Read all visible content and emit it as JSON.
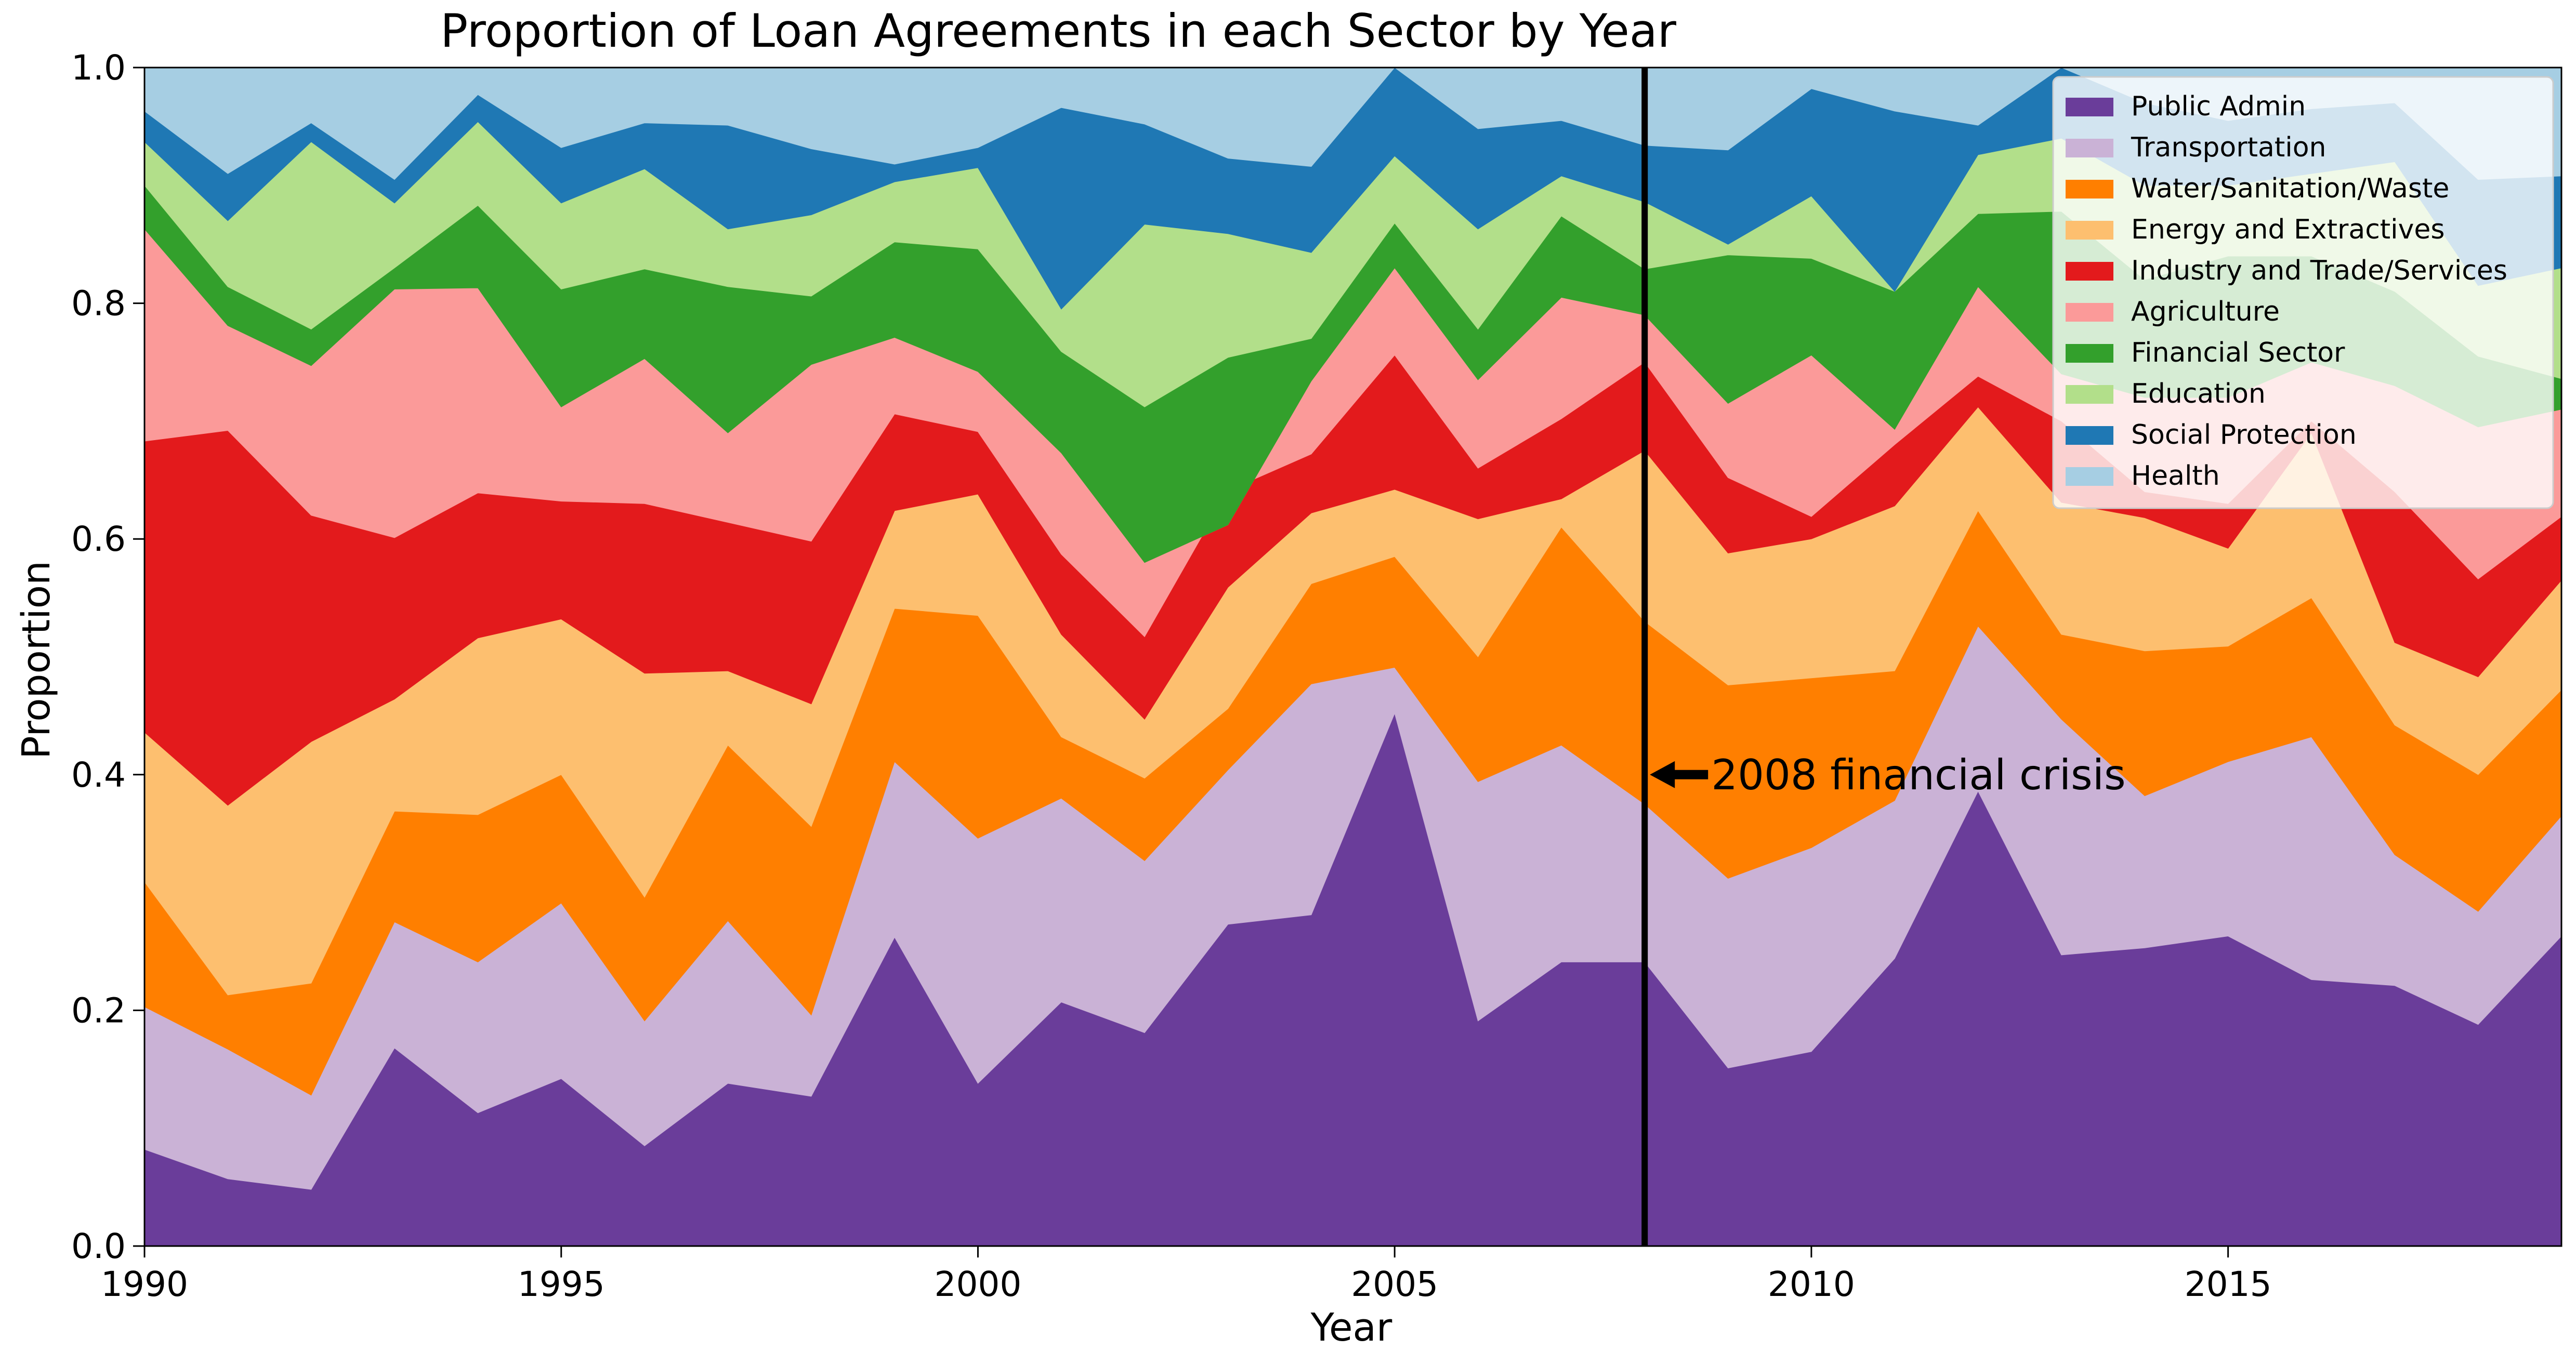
{
  "chart_data": {
    "type": "area",
    "stacked": true,
    "normalized": true,
    "title": "Proportion of Loan Agreements in each Sector by Year",
    "xlabel": "Year",
    "ylabel": "Proportion",
    "xlim": [
      1990,
      2019
    ],
    "ylim": [
      0,
      1
    ],
    "xticks": [
      "1990",
      "1995",
      "2000",
      "2005",
      "2010",
      "2015"
    ],
    "xtick_values": [
      1990,
      1995,
      2000,
      2005,
      2010,
      2015
    ],
    "yticks": [
      "0.0",
      "0.2",
      "0.4",
      "0.6",
      "0.8",
      "1.0"
    ],
    "ytick_values": [
      0,
      0.2,
      0.4,
      0.6,
      0.8,
      1.0
    ],
    "grid": false,
    "legend_position": "top-right",
    "x": [
      1990,
      1991,
      1992,
      1993,
      1994,
      1995,
      1996,
      1997,
      1998,
      1999,
      2000,
      2001,
      2002,
      2003,
      2004,
      2005,
      2006,
      2007,
      2008,
      2009,
      2010,
      2011,
      2012,
      2013,
      2014,
      2015,
      2016,
      2017,
      2018,
      2019
    ],
    "series": [
      {
        "name": "Public Admin",
        "color": "#6a3d9a",
        "cumulative": [
          0.082,
          0.057,
          0.048,
          0.168,
          0.113,
          0.142,
          0.085,
          0.138,
          0.127,
          0.262,
          0.138,
          0.207,
          0.181,
          0.273,
          0.281,
          0.452,
          0.191,
          0.241,
          0.241,
          0.151,
          0.165,
          0.244,
          0.386,
          0.247,
          0.253,
          0.263,
          0.226,
          0.221,
          0.188,
          0.263
        ]
      },
      {
        "name": "Transportation",
        "color": "#cab2d6",
        "cumulative": [
          0.203,
          0.167,
          0.128,
          0.275,
          0.241,
          0.291,
          0.191,
          0.276,
          0.196,
          0.411,
          0.346,
          0.38,
          0.327,
          0.404,
          0.477,
          0.491,
          0.394,
          0.425,
          0.375,
          0.312,
          0.338,
          0.378,
          0.526,
          0.447,
          0.382,
          0.411,
          0.432,
          0.332,
          0.284,
          0.365
        ]
      },
      {
        "name": "Water/Sanitation/Waste",
        "color": "#ff7f00",
        "cumulative": [
          0.309,
          0.213,
          0.223,
          0.369,
          0.366,
          0.4,
          0.296,
          0.425,
          0.356,
          0.541,
          0.535,
          0.432,
          0.397,
          0.456,
          0.562,
          0.585,
          0.5,
          0.61,
          0.53,
          0.476,
          0.482,
          0.488,
          0.624,
          0.519,
          0.505,
          0.509,
          0.55,
          0.442,
          0.4,
          0.472
        ]
      },
      {
        "name": "Energy and Extractives",
        "color": "#fdbf6f",
        "cumulative": [
          0.436,
          0.374,
          0.428,
          0.464,
          0.516,
          0.532,
          0.486,
          0.488,
          0.46,
          0.624,
          0.638,
          0.519,
          0.447,
          0.559,
          0.622,
          0.642,
          0.617,
          0.634,
          0.675,
          0.588,
          0.6,
          0.628,
          0.712,
          0.631,
          0.618,
          0.592,
          0.69,
          0.512,
          0.483,
          0.565
        ]
      },
      {
        "name": "Industry and Trade/Services",
        "color": "#e31a1c",
        "cumulative": [
          0.683,
          0.692,
          0.62,
          0.601,
          0.639,
          0.632,
          0.63,
          0.614,
          0.598,
          0.706,
          0.691,
          0.587,
          0.517,
          0.641,
          0.672,
          0.756,
          0.66,
          0.702,
          0.75,
          0.652,
          0.619,
          0.68,
          0.738,
          0.7,
          0.64,
          0.63,
          0.7,
          0.64,
          0.566,
          0.619
        ]
      },
      {
        "name": "Agriculture",
        "color": "#fb9a99",
        "cumulative": [
          0.863,
          0.781,
          0.747,
          0.812,
          0.813,
          0.712,
          0.753,
          0.69,
          0.748,
          0.771,
          0.742,
          0.673,
          0.58,
          0.612,
          0.734,
          0.83,
          0.735,
          0.805,
          0.79,
          0.715,
          0.756,
          0.693,
          0.814,
          0.74,
          0.72,
          0.72,
          0.75,
          0.73,
          0.695,
          0.71
        ]
      },
      {
        "name": "Financial Sector",
        "color": "#33a02c",
        "cumulative": [
          0.9,
          0.814,
          0.778,
          0.83,
          0.883,
          0.812,
          0.829,
          0.814,
          0.806,
          0.852,
          0.846,
          0.759,
          0.712,
          0.754,
          0.77,
          0.868,
          0.778,
          0.874,
          0.829,
          0.841,
          0.838,
          0.81,
          0.876,
          0.878,
          0.82,
          0.84,
          0.84,
          0.81,
          0.755,
          0.736
        ]
      },
      {
        "name": "Education",
        "color": "#b2df8a",
        "cumulative": [
          0.937,
          0.87,
          0.937,
          0.885,
          0.954,
          0.885,
          0.914,
          0.863,
          0.875,
          0.903,
          0.915,
          0.795,
          0.867,
          0.859,
          0.843,
          0.925,
          0.863,
          0.908,
          0.886,
          0.85,
          0.891,
          0.81,
          0.926,
          0.94,
          0.9,
          0.9,
          0.91,
          0.92,
          0.815,
          0.83
        ]
      },
      {
        "name": "Social Protection",
        "color": "#1f78b4",
        "cumulative": [
          0.963,
          0.91,
          0.953,
          0.905,
          0.977,
          0.932,
          0.953,
          0.951,
          0.931,
          0.918,
          0.932,
          0.966,
          0.952,
          0.923,
          0.916,
          1.0,
          0.948,
          0.955,
          0.934,
          0.93,
          0.982,
          0.963,
          0.951,
          1.0,
          0.97,
          0.955,
          0.965,
          0.97,
          0.905,
          0.908
        ]
      },
      {
        "name": "Health",
        "color": "#a6cee3",
        "cumulative": [
          1,
          1,
          1,
          1,
          1,
          1,
          1,
          1,
          1,
          1,
          1,
          1,
          1,
          1,
          1,
          1,
          1,
          1,
          1,
          1,
          1,
          1,
          1,
          1,
          1,
          1,
          1,
          1,
          1,
          1
        ]
      }
    ],
    "annotation": {
      "text": "2008 financial crisis",
      "x": 2008,
      "y": 0.4
    }
  }
}
